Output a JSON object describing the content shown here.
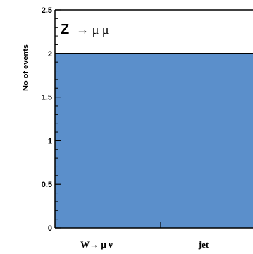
{
  "chart_data": {
    "type": "bar",
    "title_main": "Z",
    "title_rest": "→ μ μ",
    "ylabel": "No of events",
    "ylim": [
      0,
      2.5
    ],
    "yticks": [
      "0",
      "0.5",
      "1",
      "1.5",
      "2",
      "2.5"
    ],
    "categories": [
      "W→ μ ν",
      "jet"
    ],
    "values": [
      2,
      2
    ],
    "bar_color": "#5b8fcb",
    "bar_edge_color": "#000000"
  }
}
